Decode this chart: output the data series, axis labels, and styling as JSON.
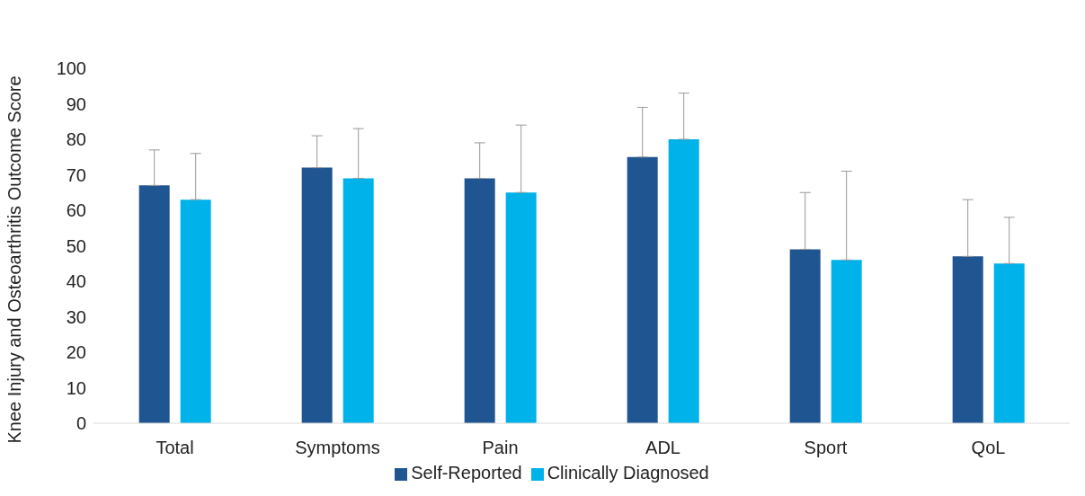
{
  "chart_data": {
    "type": "bar",
    "ylabel": "Knee Injury and Osteoarthritis Outcome Score",
    "categories": [
      "Total",
      "Symptoms",
      "Pain",
      "ADL",
      "Sport",
      "QoL"
    ],
    "series": [
      {
        "name": "Self-Reported",
        "color": "#1f5591",
        "values": [
          67,
          72,
          69,
          75,
          49,
          47
        ],
        "errors": [
          [
            67,
            77
          ],
          [
            72,
            81
          ],
          [
            69,
            79
          ],
          [
            75,
            89
          ],
          [
            49,
            65
          ],
          [
            47,
            63
          ]
        ]
      },
      {
        "name": "Clinically Diagnosed",
        "color": "#00b2ea",
        "values": [
          63,
          69,
          65,
          80,
          46,
          45
        ],
        "errors": [
          [
            63,
            76
          ],
          [
            69,
            83
          ],
          [
            65,
            84
          ],
          [
            80,
            93
          ],
          [
            46,
            71
          ],
          [
            45,
            58
          ]
        ]
      }
    ],
    "ylim": [
      0,
      100
    ],
    "yticks": [
      0,
      10,
      20,
      30,
      40,
      50,
      60,
      70,
      80,
      90,
      100
    ],
    "grid": false,
    "legend": "bottom"
  }
}
